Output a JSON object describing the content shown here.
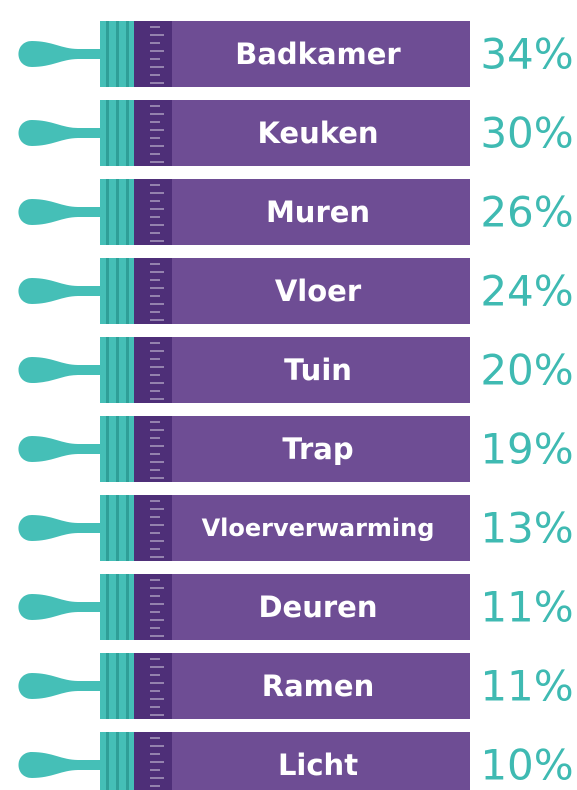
{
  "items": [
    {
      "label": "Badkamer",
      "value": "34%"
    },
    {
      "label": "Keuken",
      "value": "30%"
    },
    {
      "label": "Muren",
      "value": "26%"
    },
    {
      "label": "Vloer",
      "value": "24%"
    },
    {
      "label": "Tuin",
      "value": "20%"
    },
    {
      "label": "Trap",
      "value": "19%"
    },
    {
      "label": "Vloerverwarming",
      "value": "13%"
    },
    {
      "label": "Deuren",
      "value": "11%"
    },
    {
      "label": "Ramen",
      "value": "11%"
    },
    {
      "label": "Licht",
      "value": "10%"
    }
  ]
}
